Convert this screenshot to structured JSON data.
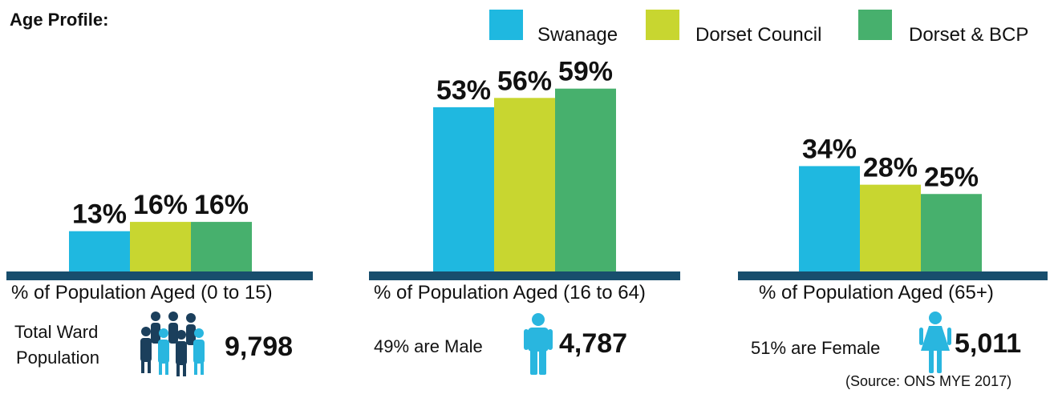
{
  "header": {
    "title": "Age Profile:"
  },
  "colors": {
    "swanage": "#1fb8e0",
    "dorset_council": "#c8d630",
    "dorset_bcp": "#47b06d",
    "baseline": "#184e6d",
    "icon_dark": "#1b3f5c",
    "icon_light": "#29b6df"
  },
  "chart_data": {
    "type": "bar",
    "categories": [
      "% of Population Aged (0 to 15)",
      "% of Population Aged (16 to 64)",
      "% of Population Aged (65+)"
    ],
    "series": [
      {
        "name": "Swanage",
        "values": [
          13,
          53,
          34
        ]
      },
      {
        "name": "Dorset Council",
        "values": [
          16,
          56,
          28
        ]
      },
      {
        "name": "Dorset & BCP",
        "values": [
          16,
          59,
          25
        ]
      }
    ],
    "data_labels": [
      [
        "13%",
        "16%",
        "16%"
      ],
      [
        "53%",
        "56%",
        "59%"
      ],
      [
        "34%",
        "28%",
        "25%"
      ]
    ],
    "ylim": [
      0,
      65
    ],
    "legend_position": "top-right",
    "grid": false
  },
  "stats": {
    "total": {
      "label_line1": "Total Ward",
      "label_line2": "Population",
      "value": "9,798",
      "icon": "people-group-icon"
    },
    "male": {
      "label": "49% are Male",
      "value": "4,787",
      "icon": "male-person-icon"
    },
    "female": {
      "label": "51% are Female",
      "value": "5,011",
      "icon": "female-person-icon"
    }
  },
  "footer": {
    "source": "(Source: ONS MYE 2017)"
  }
}
